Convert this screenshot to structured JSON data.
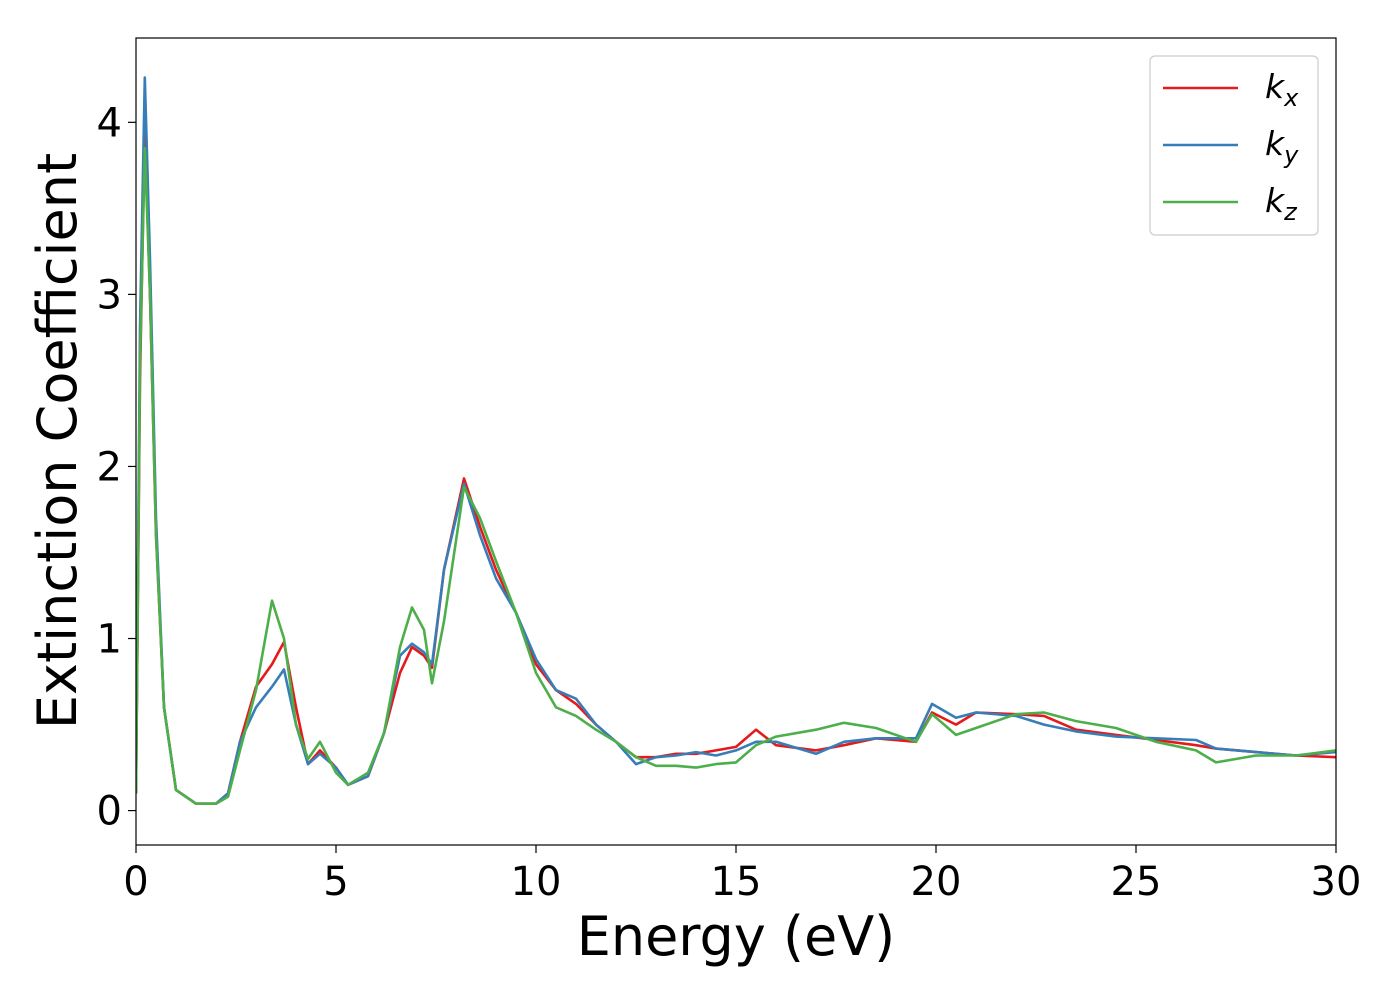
{
  "chart_data": {
    "type": "line",
    "x_label": "Energy (eV)",
    "y_label": "Extinction Coefficient",
    "x": [
      0,
      0.1,
      0.22,
      0.35,
      0.5,
      0.7,
      1.0,
      1.5,
      2.0,
      2.3,
      2.6,
      3.0,
      3.4,
      3.7,
      4.0,
      4.3,
      4.6,
      5.0,
      5.3,
      5.8,
      6.2,
      6.6,
      6.9,
      7.2,
      7.4,
      7.7,
      8.2,
      8.6,
      9.0,
      9.5,
      10,
      10.5,
      11,
      11.5,
      12,
      12.5,
      13,
      13.5,
      14,
      14.5,
      15,
      15.5,
      16,
      17,
      17.7,
      18.5,
      19.5,
      19.9,
      20.5,
      21,
      22,
      22.7,
      23.5,
      24.5,
      25.5,
      26.5,
      27,
      28,
      29,
      30
    ],
    "series": [
      {
        "name": "kx",
        "color": "#e41a1c",
        "values": [
          0.1,
          2.5,
          3.98,
          3.0,
          1.6,
          0.6,
          0.12,
          0.04,
          0.04,
          0.1,
          0.4,
          0.72,
          0.85,
          0.98,
          0.6,
          0.27,
          0.35,
          0.25,
          0.15,
          0.2,
          0.45,
          0.8,
          0.95,
          0.9,
          0.83,
          1.4,
          1.93,
          1.65,
          1.4,
          1.15,
          0.85,
          0.7,
          0.62,
          0.5,
          0.4,
          0.31,
          0.31,
          0.33,
          0.33,
          0.35,
          0.37,
          0.47,
          0.38,
          0.35,
          0.38,
          0.42,
          0.4,
          0.57,
          0.5,
          0.57,
          0.56,
          0.55,
          0.47,
          0.44,
          0.41,
          0.38,
          0.36,
          0.34,
          0.32,
          0.31
        ]
      },
      {
        "name": "ky",
        "color": "#377eb8",
        "values": [
          0.1,
          2.8,
          4.26,
          3.2,
          1.7,
          0.6,
          0.12,
          0.04,
          0.04,
          0.1,
          0.4,
          0.6,
          0.72,
          0.82,
          0.5,
          0.27,
          0.33,
          0.25,
          0.15,
          0.2,
          0.45,
          0.9,
          0.97,
          0.92,
          0.85,
          1.4,
          1.9,
          1.6,
          1.35,
          1.15,
          0.88,
          0.7,
          0.65,
          0.5,
          0.4,
          0.27,
          0.31,
          0.32,
          0.34,
          0.32,
          0.35,
          0.4,
          0.4,
          0.33,
          0.4,
          0.42,
          0.42,
          0.62,
          0.54,
          0.57,
          0.55,
          0.5,
          0.46,
          0.43,
          0.42,
          0.41,
          0.36,
          0.34,
          0.32,
          0.34
        ]
      },
      {
        "name": "kz",
        "color": "#4daf4a",
        "values": [
          0.1,
          2.6,
          3.85,
          3.0,
          1.6,
          0.6,
          0.12,
          0.04,
          0.04,
          0.08,
          0.35,
          0.7,
          1.22,
          1.0,
          0.5,
          0.3,
          0.4,
          0.22,
          0.15,
          0.22,
          0.45,
          0.95,
          1.18,
          1.05,
          0.74,
          1.1,
          1.88,
          1.7,
          1.45,
          1.15,
          0.8,
          0.6,
          0.55,
          0.47,
          0.4,
          0.31,
          0.26,
          0.26,
          0.25,
          0.27,
          0.28,
          0.38,
          0.43,
          0.47,
          0.51,
          0.48,
          0.4,
          0.56,
          0.44,
          0.48,
          0.56,
          0.57,
          0.52,
          0.48,
          0.4,
          0.35,
          0.28,
          0.32,
          0.32,
          0.35
        ]
      }
    ],
    "xlim": [
      0,
      30
    ],
    "xticks": [
      0,
      5,
      10,
      15,
      20,
      25,
      30
    ],
    "ylim": [
      -0.2,
      4.49
    ],
    "yticks": [
      0,
      1,
      2,
      3,
      4
    ],
    "grid": false,
    "legend": "upper right"
  }
}
